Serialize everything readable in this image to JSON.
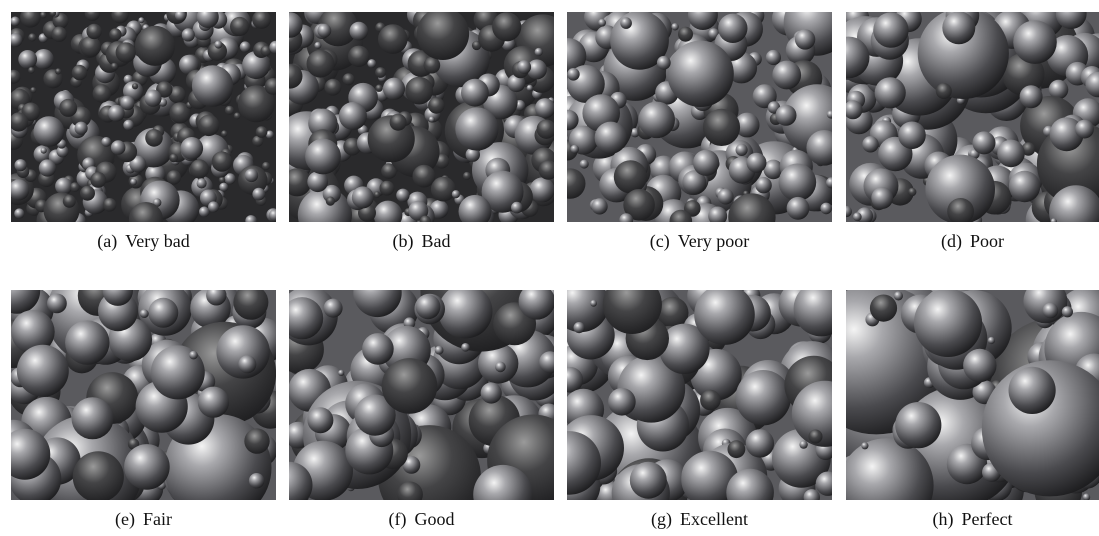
{
  "figure": {
    "panels": [
      {
        "tag": "(a)",
        "label": "Very bad"
      },
      {
        "tag": "(b)",
        "label": "Bad"
      },
      {
        "tag": "(c)",
        "label": "Very poor"
      },
      {
        "tag": "(d)",
        "label": "Poor"
      },
      {
        "tag": "(e)",
        "label": "Fair"
      },
      {
        "tag": "(f)",
        "label": "Good"
      },
      {
        "tag": "(g)",
        "label": "Excellent"
      },
      {
        "tag": "(h)",
        "label": "Perfect"
      }
    ]
  }
}
